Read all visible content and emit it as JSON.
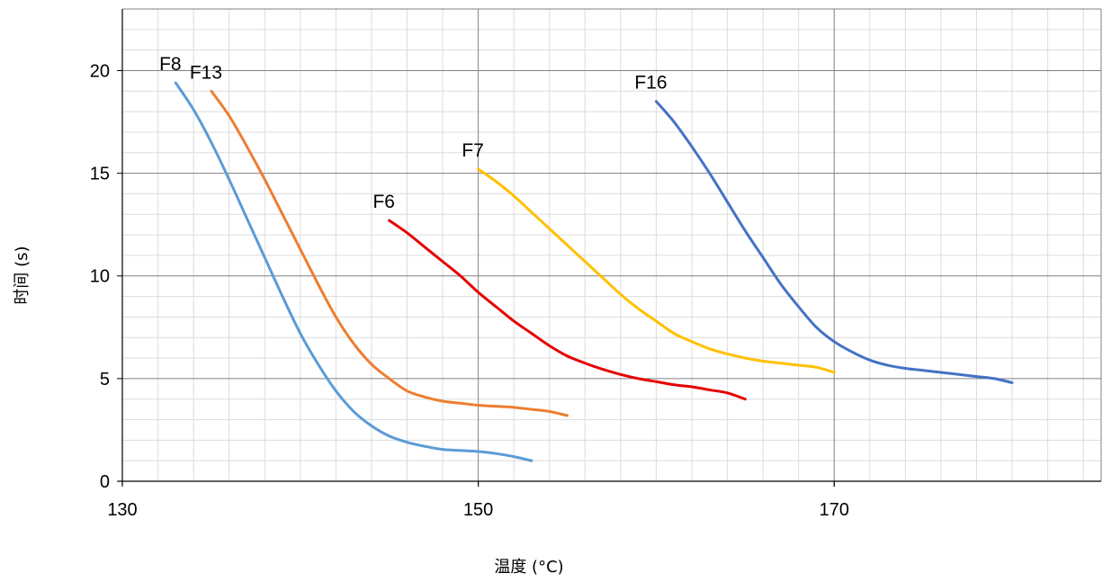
{
  "chart_data": {
    "type": "line",
    "title": "",
    "xlabel": "温度 (°C)",
    "ylabel": "时间 (s)",
    "xlim": [
      130,
      185
    ],
    "ylim": [
      0,
      23
    ],
    "x_ticks": [
      130,
      150,
      170
    ],
    "y_ticks": [
      0,
      5,
      10,
      15,
      20
    ],
    "x_major_grid": [
      150,
      170
    ],
    "x_minor_grid_step": 2,
    "y_minor_grid_step": 1,
    "grid": true,
    "legend": "none",
    "series": [
      {
        "name": "F8",
        "color": "#5B9BD5",
        "x": [
          133,
          134,
          135,
          136,
          137,
          138,
          139,
          140,
          141,
          142,
          143,
          144,
          145,
          146,
          147,
          148,
          149,
          150,
          151,
          152,
          153
        ],
        "y": [
          19.4,
          18.1,
          16.5,
          14.7,
          12.8,
          10.9,
          9.0,
          7.2,
          5.7,
          4.4,
          3.4,
          2.7,
          2.2,
          1.9,
          1.7,
          1.55,
          1.5,
          1.45,
          1.35,
          1.2,
          1.0
        ]
      },
      {
        "name": "F13",
        "color": "#ED7D31",
        "x": [
          135,
          136,
          137,
          138,
          139,
          140,
          141,
          142,
          143,
          144,
          145,
          146,
          147,
          148,
          149,
          150,
          151,
          152,
          153,
          154,
          155
        ],
        "y": [
          19.0,
          17.8,
          16.3,
          14.7,
          13.0,
          11.3,
          9.6,
          8.0,
          6.7,
          5.7,
          5.0,
          4.4,
          4.1,
          3.9,
          3.8,
          3.7,
          3.65,
          3.6,
          3.5,
          3.4,
          3.2
        ]
      },
      {
        "name": "F6",
        "color": "#E60000",
        "x": [
          145,
          146,
          147,
          148,
          149,
          150,
          151,
          152,
          153,
          154,
          155,
          156,
          157,
          158,
          159,
          160,
          161,
          162,
          163,
          164,
          165
        ],
        "y": [
          12.7,
          12.1,
          11.4,
          10.7,
          10.0,
          9.2,
          8.5,
          7.8,
          7.2,
          6.6,
          6.1,
          5.75,
          5.45,
          5.2,
          5.0,
          4.85,
          4.7,
          4.6,
          4.45,
          4.3,
          4.0
        ]
      },
      {
        "name": "F7",
        "color": "#FFC000",
        "x": [
          150,
          151,
          152,
          153,
          154,
          155,
          156,
          157,
          158,
          159,
          160,
          161,
          162,
          163,
          164,
          165,
          166,
          167,
          168,
          169,
          170
        ],
        "y": [
          15.2,
          14.6,
          13.9,
          13.1,
          12.3,
          11.5,
          10.7,
          9.9,
          9.1,
          8.4,
          7.8,
          7.2,
          6.8,
          6.45,
          6.2,
          6.0,
          5.85,
          5.75,
          5.65,
          5.55,
          5.3
        ]
      },
      {
        "name": "F16",
        "color": "#4472C4",
        "x": [
          160,
          161,
          162,
          163,
          164,
          165,
          166,
          167,
          168,
          169,
          170,
          171,
          172,
          173,
          174,
          175,
          176,
          177,
          178,
          179,
          180
        ],
        "y": [
          18.5,
          17.5,
          16.3,
          15.0,
          13.6,
          12.2,
          10.9,
          9.6,
          8.5,
          7.5,
          6.8,
          6.3,
          5.9,
          5.65,
          5.5,
          5.4,
          5.3,
          5.2,
          5.1,
          5.0,
          4.8
        ]
      }
    ]
  }
}
